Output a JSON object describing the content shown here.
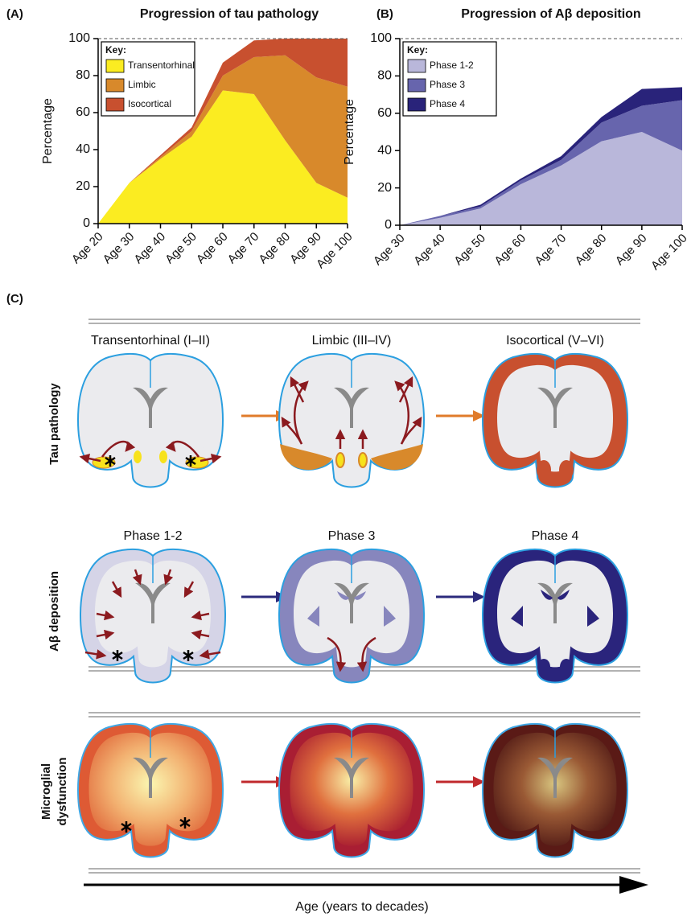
{
  "chart_data": [
    {
      "type": "area",
      "stacked": true,
      "panel_label": "(A)",
      "title": "Progression of tau pathology",
      "y_label": "Percentage",
      "categories": [
        "Age 20",
        "Age 30",
        "Age 40",
        "Age 50",
        "Age 60",
        "Age 70",
        "Age 80",
        "Age 90",
        "Age 100"
      ],
      "series": [
        {
          "name": "Transentorhinal",
          "color": "#fbec21",
          "values": [
            0,
            22,
            35,
            47,
            72,
            70,
            45,
            22,
            14
          ]
        },
        {
          "name": "Limbic",
          "color": "#d8892b",
          "values": [
            0,
            0,
            1,
            3,
            8,
            20,
            46,
            57,
            60
          ]
        },
        {
          "name": "Isocortical",
          "color": "#c8502f",
          "values": [
            0,
            0,
            1,
            2,
            7,
            9,
            9,
            21,
            26
          ]
        }
      ],
      "ylim": [
        0,
        100
      ],
      "yticks": [
        0,
        20,
        40,
        60,
        80,
        100
      ],
      "legend_title": "Key:",
      "legend_position": "upper left"
    },
    {
      "type": "area",
      "stacked": true,
      "panel_label": "(B)",
      "title": "Progression of Aβ deposition",
      "y_label": "Percentage",
      "categories": [
        "Age 30",
        "Age 40",
        "Age 50",
        "Age 60",
        "Age 70",
        "Age 80",
        "Age 90",
        "Age 100"
      ],
      "series": [
        {
          "name": "Phase 1-2",
          "color": "#b9b7da",
          "values": [
            0,
            4,
            9,
            22,
            32,
            45,
            50,
            40
          ]
        },
        {
          "name": "Phase 3",
          "color": "#6765ad",
          "values": [
            0,
            1,
            1,
            2,
            3,
            10,
            14,
            27
          ]
        },
        {
          "name": "Phase 4",
          "color": "#29237a",
          "values": [
            0,
            0,
            1,
            1,
            2,
            3,
            9,
            7
          ]
        }
      ],
      "ylim": [
        0,
        100
      ],
      "yticks": [
        0,
        20,
        40,
        60,
        80,
        100
      ],
      "legend_title": "Key:",
      "legend_position": "upper left"
    }
  ],
  "figure_c": {
    "panel_label": "(C)",
    "rows": [
      {
        "label": "Tau pathology",
        "stages": [
          "Transentorhinal (I–II)",
          "Limbic (III–IV)",
          "Isocortical (V–VI)"
        ]
      },
      {
        "label": "Aβ deposition",
        "stages": [
          "Phase 1-2",
          "Phase 3",
          "Phase 4"
        ]
      },
      {
        "label": [
          "Microglial",
          "dysfunction"
        ]
      }
    ],
    "x_axis_label": "Age (years to decades)"
  }
}
